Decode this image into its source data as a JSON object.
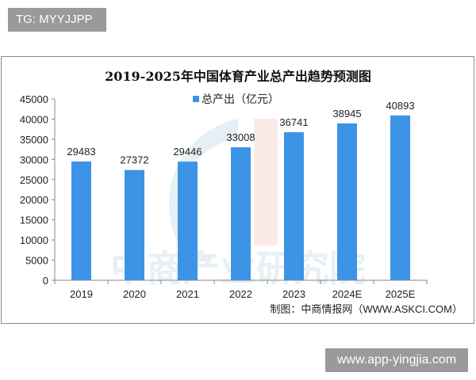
{
  "overlay": {
    "tg_label": "TG: MYYJJPP",
    "site_label": "www.app-yingjia.com"
  },
  "watermark": "中商产业研究院",
  "chart_data": {
    "type": "bar",
    "title": "2019-2025年中国体育产业总产出趋势预测图",
    "categories": [
      "2019",
      "2020",
      "2021",
      "2022",
      "2023",
      "2024E",
      "2025E"
    ],
    "series": [
      {
        "name": "总产出（亿元）",
        "values": [
          29483,
          27372,
          29446,
          33008,
          36741,
          38945,
          40893
        ],
        "color": "#3d94e6"
      }
    ],
    "data_labels": [
      "29483",
      "27372",
      "29446",
      "33008",
      "36741",
      "38945",
      "40893"
    ],
    "yticks": [
      "0",
      "5000",
      "10000",
      "15000",
      "20000",
      "25000",
      "30000",
      "35000",
      "40000",
      "45000"
    ],
    "ylim": [
      0,
      45000
    ],
    "xlabel": "",
    "ylabel": "",
    "legend_position": "top-center",
    "grid": false,
    "source": "制图：中商情报网（WWW.ASKCI.COM）"
  }
}
